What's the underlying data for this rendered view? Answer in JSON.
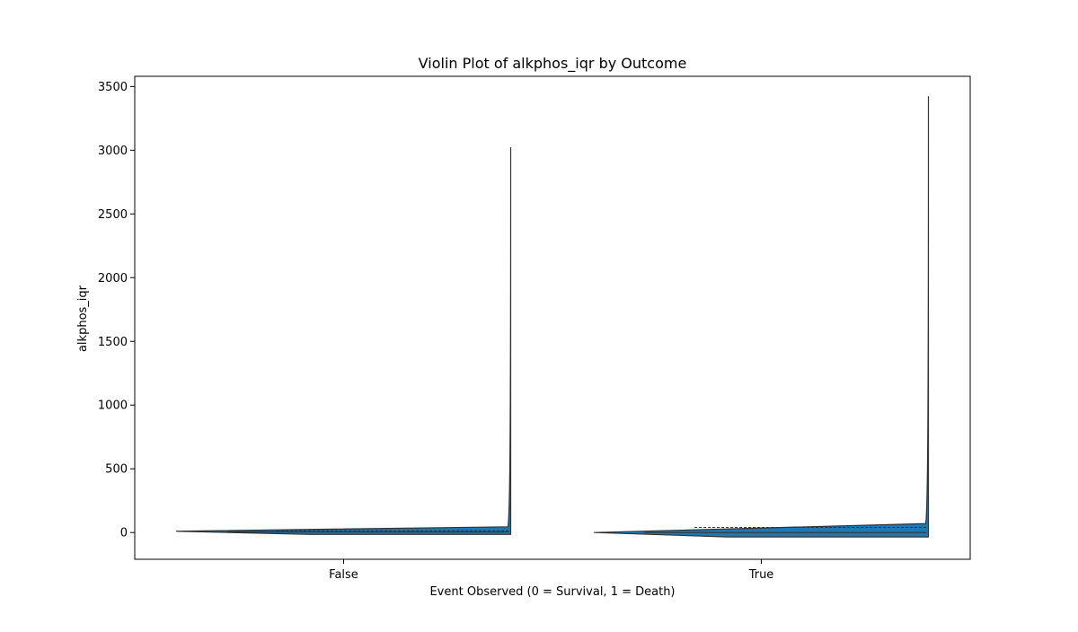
{
  "chart_data": {
    "type": "violin",
    "title": "Violin Plot of alkphos_iqr by Outcome",
    "xlabel": "Event Observed (0 = Survival, 1 = Death)",
    "ylabel": "alkphos_iqr",
    "categories": [
      "False",
      "True"
    ],
    "ylim": [
      -210,
      3580
    ],
    "yticks": [
      0,
      500,
      1000,
      1500,
      2000,
      2500,
      3000,
      3500
    ],
    "grid": false,
    "fill_color": "#1f77b4",
    "edge_color": "#333333",
    "violins": [
      {
        "category": "False",
        "min": -15,
        "max": 3020,
        "median": 5,
        "q1": -5,
        "q3": 15,
        "tail_value": 45,
        "tip_value": 10
      },
      {
        "category": "True",
        "min": -35,
        "max": 3420,
        "median": 0,
        "q1": -20,
        "q3": 40,
        "tail_value": 70,
        "tip_value": 0
      }
    ]
  }
}
